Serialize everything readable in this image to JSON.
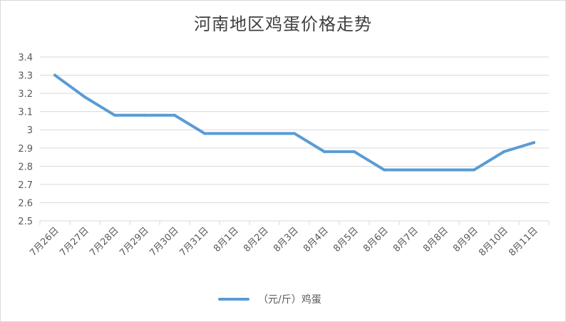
{
  "chart_data": {
    "type": "line",
    "title": "河南地区鸡蛋价格走势",
    "categories": [
      "7月26日",
      "7月27日",
      "7月28日",
      "7月29日",
      "7月30日",
      "7月31日",
      "8月1日",
      "8月2日",
      "8月3日",
      "8月4日",
      "8月5日",
      "8月6日",
      "8月7日",
      "8月8日",
      "8月9日",
      "8月10日",
      "8月11日"
    ],
    "series": [
      {
        "name": "（元/斤）鸡蛋",
        "values": [
          3.3,
          3.18,
          3.08,
          3.08,
          3.08,
          2.98,
          2.98,
          2.98,
          2.98,
          2.88,
          2.88,
          2.78,
          2.78,
          2.78,
          2.78,
          2.88,
          2.93
        ]
      }
    ],
    "ylim": [
      2.5,
      3.4
    ],
    "yticks": [
      "2.5",
      "2.6",
      "2.7",
      "2.8",
      "2.9",
      "3",
      "3.1",
      "3.2",
      "3.3",
      "3.4"
    ],
    "grid": true,
    "legend": "bottom",
    "line_color": "#5b9bd5",
    "grid_color": "#d9d9d9"
  }
}
